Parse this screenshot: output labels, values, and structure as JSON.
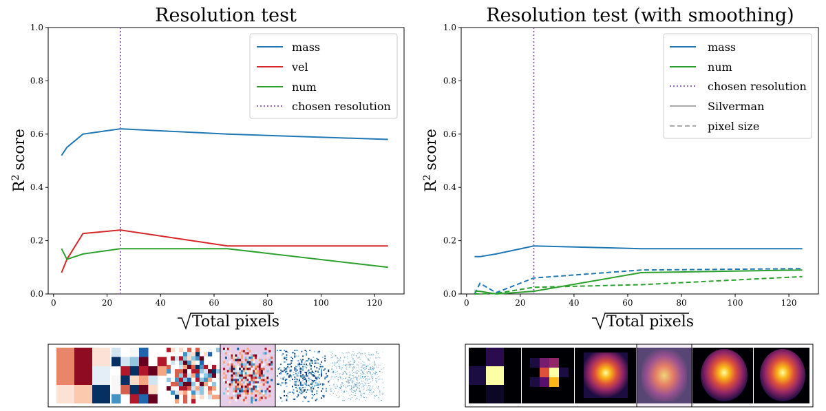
{
  "chart_data": [
    {
      "type": "line",
      "title": "Resolution test",
      "xlabel": "Total pixels",
      "ylabel": "score",
      "ylabel_prefix": "R",
      "ylabel_superscript": "2",
      "xlim": [
        -2,
        131
      ],
      "ylim": [
        0,
        1
      ],
      "xticks": [
        "0",
        "20",
        "40",
        "60",
        "80",
        "100",
        "120"
      ],
      "yticks": [
        "0.0",
        "0.2",
        "0.4",
        "0.6",
        "0.8",
        "1.0"
      ],
      "vline": {
        "x": 25,
        "label": "chosen resolution",
        "color": "#9467bd"
      },
      "legend_position": "top-right",
      "series": [
        {
          "name": "mass",
          "color": "#1f77b4",
          "style": "solid",
          "x": [
            3,
            5,
            11,
            25,
            65,
            125
          ],
          "values": [
            0.52,
            0.55,
            0.6,
            0.62,
            0.6,
            0.58
          ]
        },
        {
          "name": "vel",
          "color": "#d62728",
          "style": "solid",
          "x": [
            3,
            5,
            11,
            25,
            65,
            125
          ],
          "values": [
            0.08,
            0.13,
            0.227,
            0.24,
            0.18,
            0.18
          ]
        },
        {
          "name": "num",
          "color": "#2ca02c",
          "style": "solid",
          "x": [
            3,
            5,
            11,
            25,
            65,
            125
          ],
          "values": [
            0.17,
            0.13,
            0.15,
            0.17,
            0.17,
            0.1
          ]
        }
      ],
      "legend": [
        {
          "label": "mass",
          "color": "#1f77b4",
          "style": "solid"
        },
        {
          "label": "vel",
          "color": "#d62728",
          "style": "solid"
        },
        {
          "label": "num",
          "color": "#2ca02c",
          "style": "solid"
        },
        {
          "label": "chosen resolution",
          "color": "#9467bd",
          "style": "dotted"
        }
      ]
    },
    {
      "type": "line",
      "title": "Resolution test (with smoothing)",
      "xlabel": "Total pixels",
      "ylabel": "score",
      "ylabel_prefix": "R",
      "ylabel_superscript": "2",
      "xlim": [
        -2,
        131
      ],
      "ylim": [
        0,
        1
      ],
      "xticks": [
        "0",
        "20",
        "40",
        "60",
        "80",
        "100",
        "120"
      ],
      "yticks": [
        "0.0",
        "0.2",
        "0.4",
        "0.6",
        "0.8",
        "1.0"
      ],
      "vline": {
        "x": 25,
        "label": "chosen resolution",
        "color": "#9467bd"
      },
      "legend_position": "top-right",
      "series": [
        {
          "name": "mass (Silverman)",
          "color": "#1f77b4",
          "style": "solid",
          "x": [
            3,
            5,
            11,
            25,
            65,
            125
          ],
          "values": [
            0.14,
            0.14,
            0.15,
            0.18,
            0.17,
            0.17
          ]
        },
        {
          "name": "mass (pixel size)",
          "color": "#1f77b4",
          "style": "dashed",
          "x": [
            3,
            5,
            11,
            25,
            65,
            125
          ],
          "values": [
            0.0,
            0.04,
            0.005,
            0.06,
            0.09,
            0.095
          ]
        },
        {
          "name": "num (Silverman)",
          "color": "#2ca02c",
          "style": "solid",
          "x": [
            3,
            5,
            11,
            25,
            65,
            125
          ],
          "values": [
            0.01,
            0.01,
            0.0,
            0.01,
            0.08,
            0.09
          ]
        },
        {
          "name": "num (pixel size)",
          "color": "#2ca02c",
          "style": "dashed",
          "x": [
            3,
            5,
            11,
            25,
            65,
            125
          ],
          "values": [
            0.0,
            0.0,
            0.002,
            0.025,
            0.035,
            0.065
          ]
        }
      ],
      "legend": [
        {
          "label": "mass",
          "color": "#1f77b4",
          "style": "solid"
        },
        {
          "label": "num",
          "color": "#2ca02c",
          "style": "solid"
        },
        {
          "label": "chosen resolution",
          "color": "#9467bd",
          "style": "dotted"
        },
        {
          "label": "Silverman",
          "color": "#aaaaaa",
          "style": "solid"
        },
        {
          "label": "pixel size",
          "color": "#aaaaaa",
          "style": "dashed"
        }
      ]
    }
  ],
  "thumbnail_strips": [
    {
      "name": "raw-resolution-thumbnails",
      "count": 6,
      "highlighted_index": 3,
      "highlight_color": "#e6cde8"
    },
    {
      "name": "smoothed-resolution-thumbnails",
      "count": 6,
      "highlighted_index": 3,
      "highlight_color": "#e6cde8"
    }
  ]
}
